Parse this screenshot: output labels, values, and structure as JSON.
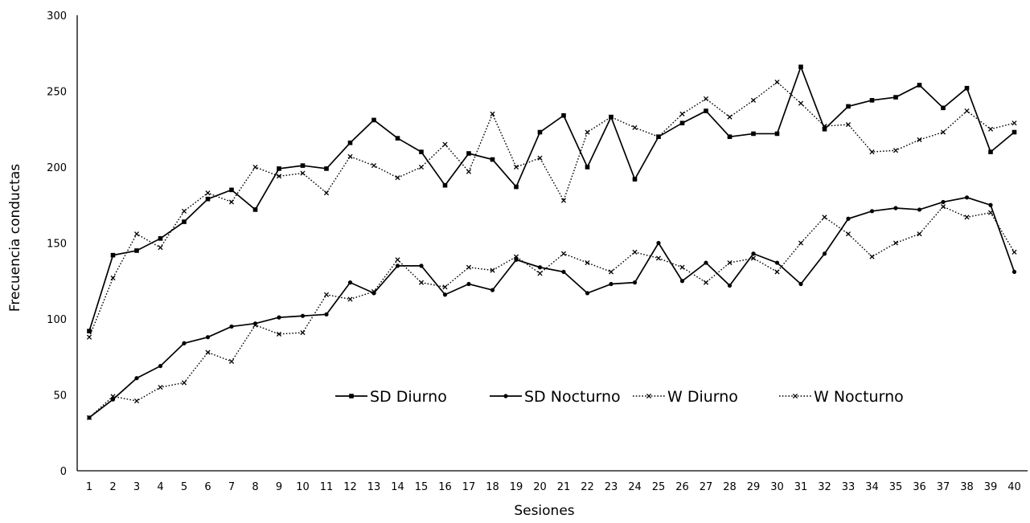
{
  "chart_data": {
    "type": "line",
    "title": "",
    "xlabel": "Sesiones",
    "ylabel": "Frecuencia conductas",
    "ylim": [
      0,
      300
    ],
    "yticks": [
      0,
      50,
      100,
      150,
      200,
      250,
      300
    ],
    "grid": false,
    "legend_position": "inside-bottom-center",
    "x": [
      1,
      2,
      3,
      4,
      5,
      6,
      7,
      8,
      9,
      10,
      11,
      12,
      13,
      14,
      15,
      16,
      17,
      18,
      19,
      20,
      21,
      22,
      23,
      24,
      25,
      26,
      27,
      28,
      29,
      30,
      31,
      32,
      33,
      34,
      35,
      36,
      37,
      38,
      39,
      40
    ],
    "series": [
      {
        "name": "SD Diurno",
        "line": "solid",
        "marker": "square",
        "values": [
          92,
          142,
          145,
          153,
          164,
          179,
          185,
          172,
          199,
          201,
          199,
          216,
          231,
          219,
          210,
          188,
          209,
          205,
          187,
          223,
          234,
          200,
          233,
          192,
          220,
          229,
          237,
          220,
          222,
          222,
          266,
          225,
          240,
          244,
          246,
          254,
          239,
          252,
          210,
          223
        ]
      },
      {
        "name": "SD Nocturno",
        "line": "solid",
        "marker": "circle",
        "values": [
          35,
          47,
          61,
          69,
          84,
          88,
          95,
          97,
          101,
          102,
          103,
          124,
          117,
          135,
          135,
          116,
          123,
          119,
          139,
          134,
          131,
          117,
          123,
          124,
          150,
          125,
          137,
          122,
          143,
          137,
          123,
          143,
          166,
          171,
          173,
          172,
          177,
          180,
          175,
          131
        ]
      },
      {
        "name": "W Diurno",
        "line": "dotted",
        "marker": "x",
        "values": [
          88,
          127,
          156,
          147,
          171,
          183,
          177,
          200,
          194,
          196,
          183,
          207,
          201,
          193,
          200,
          215,
          197,
          235,
          200,
          206,
          178,
          223,
          233,
          226,
          220,
          235,
          245,
          233,
          244,
          256,
          242,
          227,
          228,
          210,
          211,
          218,
          223,
          237,
          225,
          229
        ]
      },
      {
        "name": "W Nocturno",
        "line": "dotted",
        "marker": "x",
        "values": [
          35,
          49,
          46,
          55,
          58,
          78,
          72,
          96,
          90,
          91,
          116,
          113,
          118,
          139,
          124,
          121,
          134,
          132,
          141,
          130,
          143,
          137,
          131,
          144,
          140,
          134,
          124,
          137,
          140,
          131,
          150,
          167,
          156,
          141,
          150,
          156,
          174,
          167,
          170,
          144
        ]
      }
    ]
  }
}
